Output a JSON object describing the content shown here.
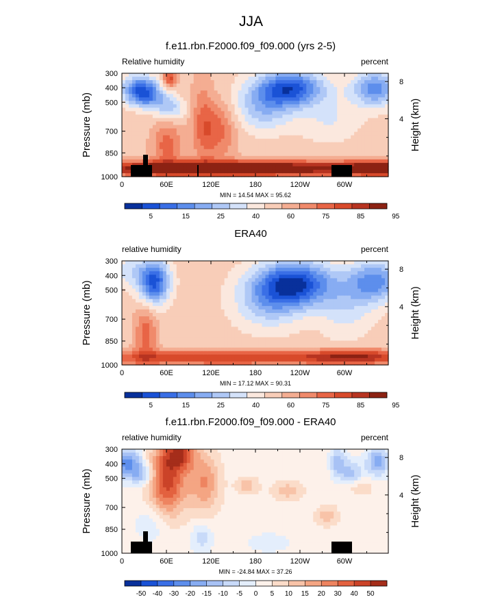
{
  "page_title": "JJA",
  "chart_data": [
    {
      "type": "heatmap",
      "title": "f.e11.rbn.F2000.f09_f09.000 (yrs 2-5)",
      "left_label": "Relative humidity",
      "right_label": "percent",
      "ylabel": "Pressure (mb)",
      "ylabel_right": "Height (km)",
      "x_ticks": [
        "0",
        "60E",
        "120E",
        "180",
        "120W",
        "60W"
      ],
      "y_ticks": [
        "300",
        "400",
        "500",
        "700",
        "850",
        "1000"
      ],
      "y_right_ticks": [
        "8",
        "4"
      ],
      "stats": "MIN = 14.54  MAX = 95.62",
      "colorbar_labels": [
        "5",
        "15",
        "25",
        "40",
        "60",
        "75",
        "85",
        "95"
      ],
      "colorbar_colors": [
        "#08309b",
        "#1a52d6",
        "#3a6fe6",
        "#5d8eec",
        "#87acf2",
        "#afc8f6",
        "#d4e2fa",
        "#fbe8de",
        "#f8cdb8",
        "#f4ad92",
        "#f08a6b",
        "#e86546",
        "#d84a2b",
        "#b73421",
        "#8c2213"
      ],
      "grid": false,
      "legend": "bottom"
    },
    {
      "type": "heatmap",
      "title": "ERA40",
      "left_label": "relative humidity",
      "right_label": "percent",
      "ylabel": "Pressure (mb)",
      "ylabel_right": "Height (km)",
      "x_ticks": [
        "0",
        "60E",
        "120E",
        "180",
        "120W",
        "60W"
      ],
      "y_ticks": [
        "300",
        "400",
        "500",
        "700",
        "850",
        "1000"
      ],
      "y_right_ticks": [
        "8",
        "4"
      ],
      "stats": "MIN = 17.12  MAX = 90.31",
      "colorbar_labels": [
        "5",
        "15",
        "25",
        "40",
        "60",
        "75",
        "85",
        "95"
      ],
      "colorbar_colors": [
        "#08309b",
        "#1a52d6",
        "#3a6fe6",
        "#5d8eec",
        "#87acf2",
        "#afc8f6",
        "#d4e2fa",
        "#fbe8de",
        "#f8cdb8",
        "#f4ad92",
        "#f08a6b",
        "#e86546",
        "#d84a2b",
        "#b73421",
        "#8c2213"
      ],
      "grid": false,
      "legend": "bottom"
    },
    {
      "type": "heatmap",
      "title": "f.e11.rbn.F2000.f09_f09.000 - ERA40",
      "left_label": "relative humidity",
      "right_label": "percent",
      "ylabel": "Pressure (mb)",
      "ylabel_right": "Height (km)",
      "x_ticks": [
        "0",
        "60E",
        "120E",
        "180",
        "120W",
        "60W"
      ],
      "y_ticks": [
        "300",
        "400",
        "500",
        "700",
        "850",
        "1000"
      ],
      "y_right_ticks": [
        "8",
        "4"
      ],
      "stats": "MIN = -24.84  MAX = 37.26",
      "colorbar_labels": [
        "-50",
        "-40",
        "-30",
        "-20",
        "-15",
        "-10",
        "-5",
        "0",
        "5",
        "10",
        "15",
        "20",
        "30",
        "40",
        "50"
      ],
      "colorbar_colors": [
        "#08309b",
        "#1a52d6",
        "#3a6fe6",
        "#5d8eec",
        "#87acf2",
        "#a8c2f5",
        "#c8daf9",
        "#e4eefc",
        "#fdf1ea",
        "#fbdcc9",
        "#f8c3a8",
        "#f4a583",
        "#ee8460",
        "#e3613f",
        "#cb4328",
        "#a52d1a"
      ],
      "grid": false,
      "legend": "bottom"
    }
  ]
}
